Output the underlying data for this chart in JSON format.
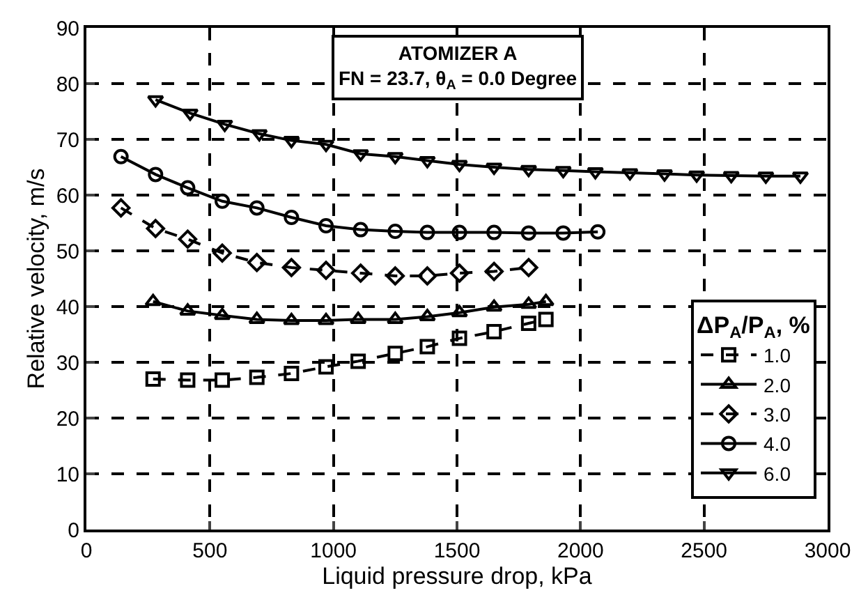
{
  "chart_data": {
    "type": "line",
    "title": "ATOMIZER A",
    "subtitle": "FN = 23.7, θ$_{A}$ = 0.0 Degree",
    "xlabel": "Liquid pressure drop, kPa",
    "ylabel": "Relative velocity, m/s",
    "legend_title": "ΔP$_{A}$/P$_{A}$, %",
    "xlim": [
      0,
      3000
    ],
    "xticks": [
      0,
      500,
      1000,
      1500,
      2000,
      2500,
      3000
    ],
    "ylim": [
      0,
      90
    ],
    "yticks": [
      0,
      10,
      20,
      30,
      40,
      50,
      60,
      70,
      80,
      90
    ],
    "grid": true,
    "legend": "right",
    "series": [
      {
        "name": "1.0",
        "color": "#000000",
        "marker": "square",
        "line_style": "dashed",
        "x": [
          270,
          410,
          550,
          690,
          830,
          970,
          1100,
          1250,
          1380,
          1510,
          1650,
          1790,
          1860
        ],
        "values": [
          27.0,
          26.8,
          26.8,
          27.3,
          28.0,
          29.2,
          30.2,
          31.6,
          32.8,
          34.3,
          35.5,
          37.0,
          37.7
        ]
      },
      {
        "name": "2.0",
        "color": "#000000",
        "marker": "triangle-up",
        "line_style": "solid",
        "x": [
          270,
          410,
          550,
          690,
          830,
          970,
          1100,
          1250,
          1380,
          1510,
          1650,
          1790,
          1860
        ],
        "values": [
          40.9,
          39.2,
          38.4,
          37.7,
          37.5,
          37.5,
          37.7,
          37.7,
          38.2,
          38.9,
          39.9,
          40.4,
          40.9
        ]
      },
      {
        "name": "3.0",
        "color": "#000000",
        "marker": "diamond",
        "line_style": "dashed",
        "x": [
          140,
          280,
          410,
          550,
          690,
          830,
          970,
          1110,
          1250,
          1380,
          1510,
          1650,
          1790
        ],
        "values": [
          57.7,
          54.0,
          52.1,
          49.6,
          47.9,
          47.0,
          46.5,
          46.0,
          45.5,
          45.5,
          46.0,
          46.3,
          47.0
        ]
      },
      {
        "name": "4.0",
        "color": "#000000",
        "marker": "circle",
        "line_style": "solid",
        "x": [
          140,
          280,
          410,
          550,
          690,
          830,
          970,
          1110,
          1250,
          1380,
          1510,
          1650,
          1790,
          1930,
          2070
        ],
        "values": [
          66.9,
          63.7,
          61.3,
          58.9,
          57.7,
          56.0,
          54.5,
          53.8,
          53.5,
          53.3,
          53.3,
          53.3,
          53.2,
          53.2,
          53.4
        ]
      },
      {
        "name": "6.0",
        "color": "#000000",
        "marker": "triangle-down",
        "line_style": "solid",
        "x": [
          280,
          420,
          560,
          700,
          830,
          970,
          1110,
          1250,
          1380,
          1510,
          1650,
          1790,
          1930,
          2060,
          2200,
          2340,
          2470,
          2610,
          2750,
          2890
        ],
        "values": [
          77.1,
          74.7,
          72.7,
          71.0,
          69.8,
          69.1,
          67.4,
          66.9,
          66.2,
          65.5,
          65.0,
          64.6,
          64.4,
          64.2,
          64.0,
          63.8,
          63.6,
          63.5,
          63.4,
          63.4
        ]
      }
    ]
  }
}
